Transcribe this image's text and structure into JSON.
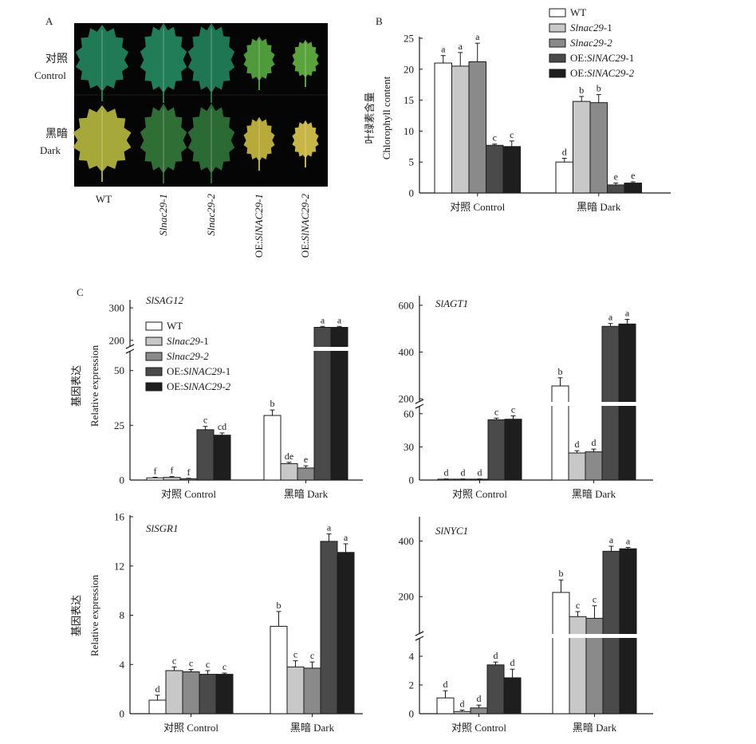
{
  "panel_labels": {
    "a": "A",
    "b": "B",
    "c": "C"
  },
  "photo_panel": {
    "row_labels": [
      {
        "zh": "对照",
        "en": "Control"
      },
      {
        "zh": "黑暗",
        "en": "Dark"
      }
    ],
    "column_labels": [
      {
        "plain": "WT",
        "italic": ""
      },
      {
        "plain": "",
        "italic": "Slnac29-1"
      },
      {
        "plain": "",
        "italic": "Slnac29-2"
      },
      {
        "plain": "OE:",
        "italic": "SlNAC29-1"
      },
      {
        "plain": "OE:",
        "italic": "SlNAC29-2"
      }
    ],
    "leaf_colors": [
      [
        "#1f7a55",
        "#207d58",
        "#1e7652",
        "#4f9a3a",
        "#5aa33c"
      ],
      [
        "#a6a83a",
        "#2f6e34",
        "#2b6a32",
        "#b7a93a",
        "#c7b545"
      ]
    ]
  },
  "legend": {
    "items": [
      {
        "plain": "WT",
        "italic": "",
        "suffix": "",
        "color": "#ffffff"
      },
      {
        "plain": "",
        "italic": "Slnac29",
        "suffix": "-1",
        "color": "#c8c8c8"
      },
      {
        "plain": "",
        "italic": "Slnac29-2",
        "suffix": "",
        "color": "#8a8a8a"
      },
      {
        "plain": "OE:",
        "italic": "SlNAC29",
        "suffix": "-1",
        "color": "#4a4a4a"
      },
      {
        "plain": "OE:",
        "italic": "SlNAC29-2",
        "suffix": "",
        "color": "#1e1e1e"
      }
    ]
  },
  "chart_data": [
    {
      "id": "chlorophyll",
      "type": "bar",
      "ylabel_zh": "叶绿素含量",
      "ylabel_en": "Chlorophyll content",
      "categories": [
        "对照 Control",
        "黑暗 Dark"
      ],
      "ylim": [
        0,
        25
      ],
      "yticks": [
        0,
        5,
        10,
        15,
        20,
        25
      ],
      "series": [
        {
          "name": "WT",
          "values": [
            21.0,
            5.0
          ],
          "errors": [
            1.2,
            0.6
          ],
          "letters": [
            "a",
            "d"
          ]
        },
        {
          "name": "Slnac29-1",
          "values": [
            20.5,
            14.8
          ],
          "errors": [
            2.2,
            0.8
          ],
          "letters": [
            "a",
            "b"
          ]
        },
        {
          "name": "Slnac29-2",
          "values": [
            21.2,
            14.6
          ],
          "errors": [
            3.0,
            1.3
          ],
          "letters": [
            "a",
            "b"
          ]
        },
        {
          "name": "OE:SlNAC29-1",
          "values": [
            7.7,
            1.3
          ],
          "errors": [
            0.2,
            0.3
          ],
          "letters": [
            "c",
            "e"
          ]
        },
        {
          "name": "OE:SlNAC29-2",
          "values": [
            7.5,
            1.6
          ],
          "errors": [
            0.9,
            0.2
          ],
          "letters": [
            "c",
            "e"
          ]
        }
      ]
    },
    {
      "id": "SlSAG12",
      "type": "bar",
      "gene": "SlSAG12",
      "ylabel_zh": "基因表达",
      "ylabel_en": "Relative expression",
      "categories": [
        "对照 Control",
        "黑暗 Dark"
      ],
      "broken_axis": true,
      "ylim_lower": [
        0,
        55
      ],
      "yticks_lower": [
        0,
        25,
        50
      ],
      "ylim_upper": [
        175,
        310
      ],
      "yticks_upper": [
        200,
        300
      ],
      "series": [
        {
          "name": "WT",
          "values": [
            1.0,
            29.5
          ],
          "errors": [
            0.3,
            2.5
          ],
          "letters": [
            "f",
            "b"
          ]
        },
        {
          "name": "Slnac29-1",
          "values": [
            1.2,
            7.5
          ],
          "errors": [
            0.4,
            0.6
          ],
          "letters": [
            "f",
            "de"
          ]
        },
        {
          "name": "Slnac29-2",
          "values": [
            0.6,
            5.5
          ],
          "errors": [
            0.2,
            1.0
          ],
          "letters": [
            "f",
            "e"
          ]
        },
        {
          "name": "OE:SlNAC29-1",
          "values": [
            23.0,
            240
          ],
          "errors": [
            1.5,
            3
          ],
          "letters": [
            "c",
            "a"
          ]
        },
        {
          "name": "OE:SlNAC29-2",
          "values": [
            20.5,
            240
          ],
          "errors": [
            1.0,
            3
          ],
          "letters": [
            "cd",
            "a"
          ]
        }
      ]
    },
    {
      "id": "SlAGT1",
      "type": "bar",
      "gene": "SlAGT1",
      "categories": [
        "对照 Control",
        "黑暗 Dark"
      ],
      "broken_axis": true,
      "ylim_lower": [
        0,
        62
      ],
      "yticks_lower": [
        0,
        30,
        60
      ],
      "ylim_upper": [
        180,
        620
      ],
      "yticks_upper": [
        200,
        400,
        600
      ],
      "series": [
        {
          "name": "WT",
          "values": [
            0.8,
            255
          ],
          "errors": [
            0.2,
            35
          ],
          "letters": [
            "d",
            "b"
          ]
        },
        {
          "name": "Slnac29-1",
          "values": [
            0.8,
            24.5
          ],
          "errors": [
            0.2,
            2.0
          ],
          "letters": [
            "d",
            "d"
          ]
        },
        {
          "name": "Slnac29-2",
          "values": [
            0.8,
            25.5
          ],
          "errors": [
            0.2,
            2.5
          ],
          "letters": [
            "d",
            "d"
          ]
        },
        {
          "name": "OE:SlNAC29-1",
          "values": [
            54.5,
            510
          ],
          "errors": [
            1.5,
            12
          ],
          "letters": [
            "c",
            "a"
          ]
        },
        {
          "name": "OE:SlNAC29-2",
          "values": [
            55.0,
            520
          ],
          "errors": [
            3.0,
            20
          ],
          "letters": [
            "c",
            "a"
          ]
        }
      ]
    },
    {
      "id": "SlSGR1",
      "type": "bar",
      "gene": "SlSGR1",
      "ylabel_zh": "基因表达",
      "ylabel_en": "Relative expression",
      "categories": [
        "对照 Control",
        "黑暗 Dark"
      ],
      "ylim": [
        0,
        16
      ],
      "yticks": [
        0,
        4,
        8,
        12,
        16
      ],
      "series": [
        {
          "name": "WT",
          "values": [
            1.1,
            7.1
          ],
          "errors": [
            0.4,
            1.2
          ],
          "letters": [
            "d",
            "b"
          ]
        },
        {
          "name": "Slnac29-1",
          "values": [
            3.5,
            3.8
          ],
          "errors": [
            0.3,
            0.5
          ],
          "letters": [
            "c",
            "c"
          ]
        },
        {
          "name": "Slnac29-2",
          "values": [
            3.4,
            3.7
          ],
          "errors": [
            0.2,
            0.5
          ],
          "letters": [
            "c",
            "c"
          ]
        },
        {
          "name": "OE:SlNAC29-1",
          "values": [
            3.2,
            14.0
          ],
          "errors": [
            0.3,
            0.6
          ],
          "letters": [
            "c",
            "a"
          ]
        },
        {
          "name": "OE:SlNAC29-2",
          "values": [
            3.2,
            13.1
          ],
          "errors": [
            0.1,
            0.7
          ],
          "letters": [
            "c",
            "a"
          ]
        }
      ]
    },
    {
      "id": "SlNYC1",
      "type": "bar",
      "gene": "SlNYC1",
      "categories": [
        "对照 Control",
        "黑暗 Dark"
      ],
      "broken_axis": true,
      "ylim_lower": [
        0,
        5
      ],
      "yticks_lower": [
        0,
        2,
        4
      ],
      "ylim_upper": [
        60,
        470
      ],
      "yticks_upper": [
        200,
        400
      ],
      "series": [
        {
          "name": "WT",
          "values": [
            1.1,
            215
          ],
          "errors": [
            0.5,
            45
          ],
          "letters": [
            "d",
            "b"
          ]
        },
        {
          "name": "Slnac29-1",
          "values": [
            0.15,
            128
          ],
          "errors": [
            0.1,
            18
          ],
          "letters": [
            "d",
            "c"
          ]
        },
        {
          "name": "Slnac29-2",
          "values": [
            0.4,
            122
          ],
          "errors": [
            0.2,
            45
          ],
          "letters": [
            "d",
            "c"
          ]
        },
        {
          "name": "OE:SlNAC29-1",
          "values": [
            3.4,
            363
          ],
          "errors": [
            0.2,
            18
          ],
          "letters": [
            "d",
            "a"
          ]
        },
        {
          "name": "OE:SlNAC29-2",
          "values": [
            2.5,
            372
          ],
          "errors": [
            0.6,
            5
          ],
          "letters": [
            "d",
            "a"
          ]
        }
      ]
    }
  ]
}
